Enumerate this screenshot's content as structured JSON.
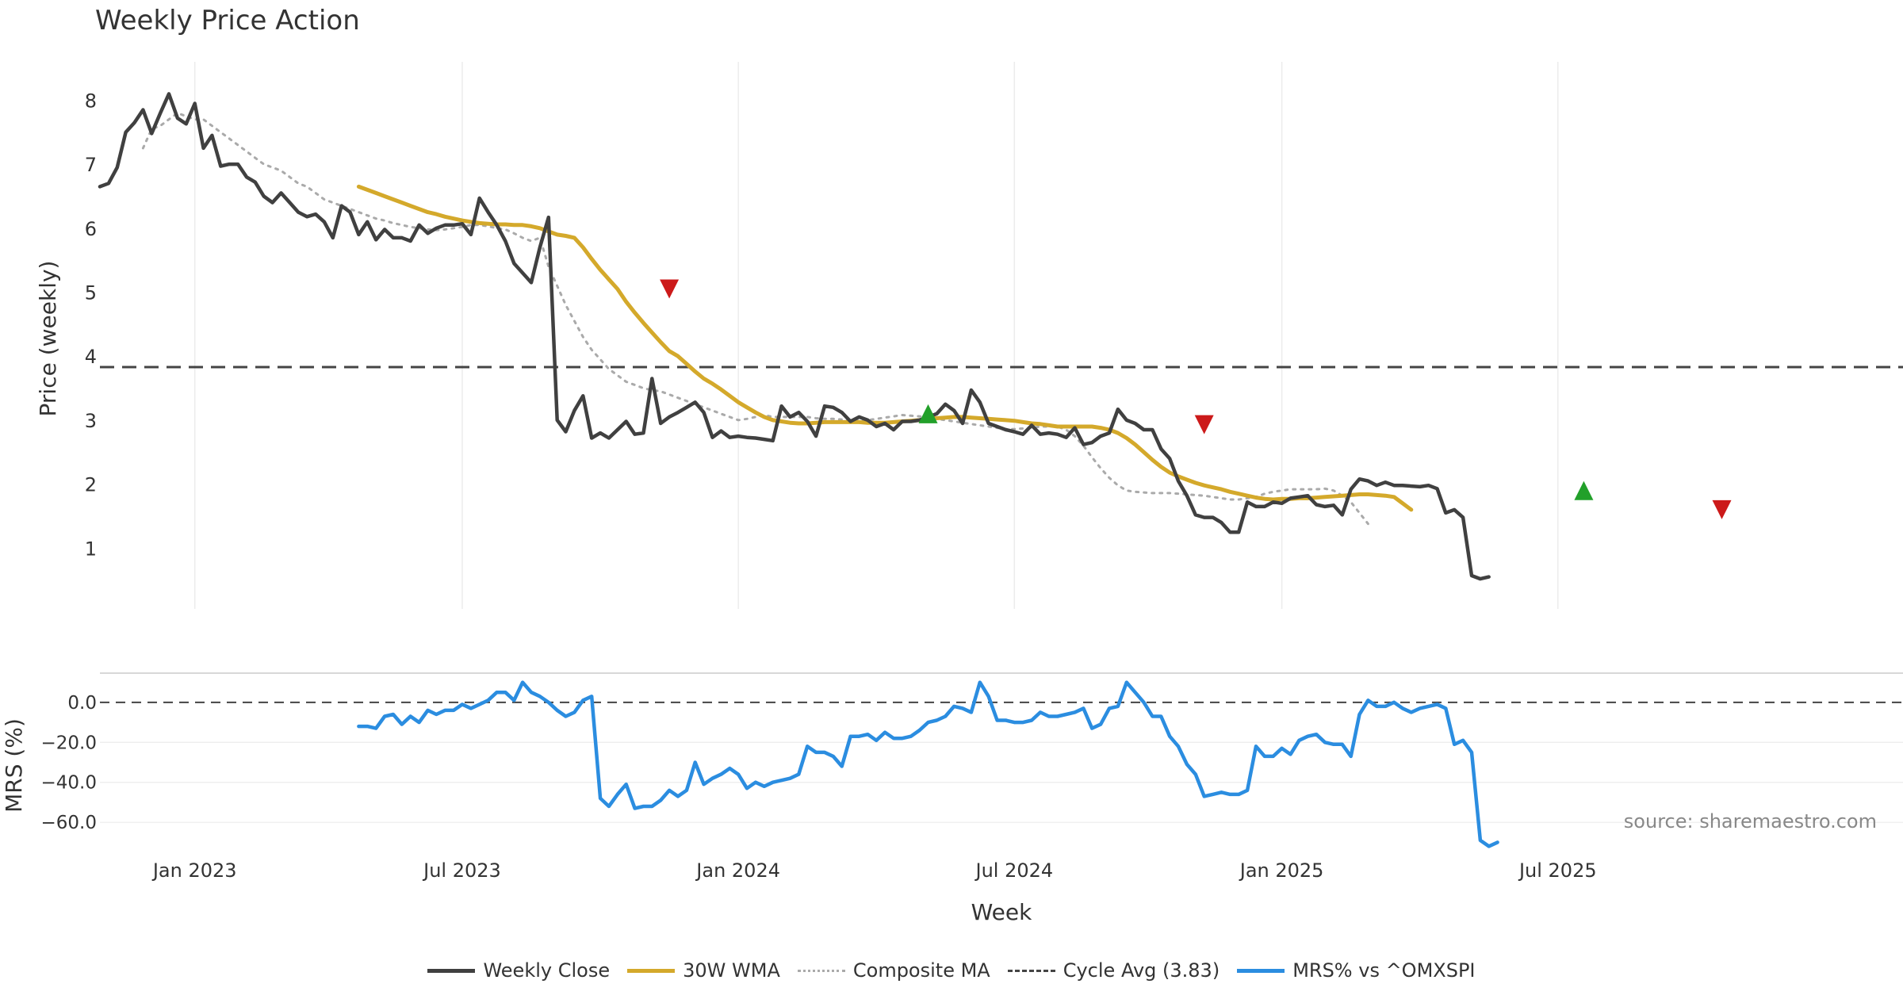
{
  "colors": {
    "close": "#404040",
    "wma": "#d4a92b",
    "composite": "#aaaaaa",
    "cycle": "#444444",
    "mrs": "#2b8de0",
    "buy": "#22a02a",
    "sell": "#cc1a1a",
    "grid": "#ececec",
    "text": "#333333",
    "source": "#888888"
  },
  "chart_data": {
    "type": "line",
    "title": "Weekly Price Action",
    "source": "source: sharemaestro.com",
    "xlabel": "Week",
    "x_range": [
      -11,
      198
    ],
    "x_ticks": [
      {
        "x": 0,
        "label": "Jan 2023"
      },
      {
        "x": 31,
        "label": "Jul 2023"
      },
      {
        "x": 63,
        "label": "Jan 2024"
      },
      {
        "x": 95,
        "label": "Jul 2024"
      },
      {
        "x": 126,
        "label": "Jan 2025"
      },
      {
        "x": 158,
        "label": "Jul 2025"
      }
    ],
    "price_panel": {
      "ylabel": "Price (weekly)",
      "ylim": [
        0.05,
        8.6
      ],
      "y_ticks": [
        "1",
        "2",
        "3",
        "4",
        "5",
        "6",
        "7",
        "8"
      ],
      "cycle_avg": 3.83,
      "series": [
        {
          "name": "Weekly Close",
          "key": "close",
          "x_start": -11,
          "values": [
            6.65,
            6.7,
            6.95,
            7.5,
            7.65,
            7.85,
            7.48,
            7.8,
            8.1,
            7.72,
            7.63,
            7.95,
            7.25,
            7.45,
            6.97,
            7.0,
            7.0,
            6.8,
            6.72,
            6.5,
            6.4,
            6.55,
            6.4,
            6.25,
            6.18,
            6.22,
            6.1,
            5.85,
            6.35,
            6.25,
            5.9,
            6.1,
            5.82,
            5.98,
            5.85,
            5.85,
            5.8,
            6.05,
            5.92,
            6.0,
            6.05,
            6.05,
            6.07,
            5.9,
            6.47,
            6.25,
            6.05,
            5.8,
            5.45,
            5.3,
            5.15,
            5.7,
            6.17,
            3.0,
            2.82,
            3.15,
            3.38,
            2.72,
            2.8,
            2.72,
            2.85,
            2.98,
            2.78,
            2.8,
            3.65,
            2.95,
            3.05,
            3.12,
            3.2,
            3.28,
            3.12,
            2.73,
            2.83,
            2.73,
            2.75,
            2.73,
            2.72,
            2.7,
            2.68,
            3.22,
            3.05,
            3.12,
            2.98,
            2.75,
            3.22,
            3.2,
            3.12,
            2.98,
            3.05,
            3.0,
            2.9,
            2.95,
            2.85,
            2.98,
            2.98,
            3.0,
            3.05,
            3.1,
            3.25,
            3.15,
            2.95,
            3.47,
            3.28,
            2.95,
            2.9,
            2.85,
            2.82,
            2.78,
            2.92,
            2.78,
            2.8,
            2.78,
            2.73,
            2.88,
            2.62,
            2.65,
            2.75,
            2.8,
            3.17,
            3.0,
            2.95,
            2.85,
            2.85,
            2.55,
            2.4,
            2.05,
            1.82,
            1.52,
            1.48,
            1.48,
            1.4,
            1.25,
            1.25,
            1.72,
            1.65,
            1.65,
            1.72,
            1.7,
            1.78,
            1.8,
            1.82,
            1.68,
            1.65,
            1.67,
            1.52,
            1.92,
            2.08,
            2.05,
            1.98,
            2.03,
            1.98,
            1.98,
            1.97,
            1.96,
            1.98,
            1.93,
            1.55,
            1.6,
            1.48,
            0.57,
            0.52,
            0.55
          ]
        },
        {
          "name": "30W WMA",
          "key": "wma",
          "x_start": 19,
          "values": [
            6.65,
            6.6,
            6.55,
            6.5,
            6.45,
            6.4,
            6.35,
            6.3,
            6.25,
            6.22,
            6.18,
            6.15,
            6.12,
            6.1,
            6.08,
            6.07,
            6.06,
            6.06,
            6.05,
            6.05,
            6.03,
            6.0,
            5.95,
            5.9,
            5.88,
            5.85,
            5.7,
            5.52,
            5.35,
            5.2,
            5.05,
            4.85,
            4.68,
            4.52,
            4.37,
            4.22,
            4.08,
            4.0,
            3.88,
            3.76,
            3.65,
            3.57,
            3.48,
            3.38,
            3.28,
            3.2,
            3.12,
            3.05,
            3.0,
            2.98,
            2.96,
            2.95,
            2.95,
            2.96,
            2.97,
            2.97,
            2.97,
            2.97,
            2.97,
            2.96,
            2.96,
            2.96,
            2.97,
            2.98,
            2.99,
            3.0,
            3.02,
            3.03,
            3.04,
            3.05,
            3.05,
            3.04,
            3.03,
            3.02,
            3.01,
            3.0,
            2.99,
            2.97,
            2.95,
            2.94,
            2.92,
            2.9,
            2.9,
            2.9,
            2.9,
            2.9,
            2.88,
            2.85,
            2.8,
            2.72,
            2.62,
            2.5,
            2.38,
            2.27,
            2.18,
            2.12,
            2.07,
            2.02,
            1.98,
            1.95,
            1.92,
            1.88,
            1.85,
            1.82,
            1.79,
            1.77,
            1.76,
            1.77,
            1.77,
            1.78,
            1.78,
            1.79,
            1.8,
            1.81,
            1.82,
            1.83,
            1.84,
            1.84,
            1.83,
            1.82,
            1.8,
            1.7,
            1.6
          ]
        },
        {
          "name": "Composite MA",
          "key": "composite",
          "x_start": -6,
          "values": [
            7.25,
            7.55,
            7.6,
            7.7,
            7.8,
            7.75,
            7.7,
            7.7,
            7.6,
            7.5,
            7.4,
            7.3,
            7.2,
            7.1,
            7.0,
            6.95,
            6.9,
            6.8,
            6.7,
            6.65,
            6.55,
            6.45,
            6.4,
            6.35,
            6.3,
            6.25,
            6.2,
            6.15,
            6.12,
            6.08,
            6.05,
            6.02,
            6.0,
            5.98,
            5.97,
            5.98,
            6.0,
            6.02,
            6.05,
            6.05,
            6.03,
            6.0,
            5.98,
            5.92,
            5.85,
            5.8,
            5.85,
            5.4,
            5.1,
            4.8,
            4.55,
            4.3,
            4.1,
            3.95,
            3.8,
            3.7,
            3.6,
            3.55,
            3.5,
            3.47,
            3.45,
            3.4,
            3.35,
            3.3,
            3.25,
            3.2,
            3.15,
            3.1,
            3.05,
            3.0,
            3.02,
            3.05,
            3.08,
            3.05,
            3.05,
            3.05,
            3.05,
            3.05,
            3.03,
            3.02,
            3.02,
            3.01,
            3.0,
            3.0,
            3.0,
            3.02,
            3.04,
            3.06,
            3.08,
            3.07,
            3.06,
            3.05,
            3.02,
            3.0,
            2.98,
            2.96,
            2.94,
            2.92,
            2.9,
            2.88,
            2.86,
            2.86,
            2.87,
            2.88,
            2.9,
            2.9,
            2.9,
            2.85,
            2.75,
            2.6,
            2.42,
            2.25,
            2.1,
            1.98,
            1.9,
            1.88,
            1.87,
            1.86,
            1.86,
            1.86,
            1.85,
            1.84,
            1.83,
            1.82,
            1.8,
            1.78,
            1.76,
            1.76,
            1.78,
            1.8,
            1.85,
            1.88,
            1.9,
            1.92,
            1.92,
            1.92,
            1.92,
            1.93,
            1.9,
            1.82,
            1.72,
            1.55,
            1.38
          ]
        }
      ],
      "signals": [
        {
          "type": "sell",
          "x": 55,
          "y": 5.05
        },
        {
          "type": "buy",
          "x": 85,
          "y": 3.1
        },
        {
          "type": "sell",
          "x": 117,
          "y": 2.93
        },
        {
          "type": "buy",
          "x": 161,
          "y": 1.9
        },
        {
          "type": "sell",
          "x": 177,
          "y": 1.6
        }
      ]
    },
    "mrs_panel": {
      "ylabel": "MRS (%)",
      "ylim": [
        -75,
        15
      ],
      "y_ticks": [
        {
          "v": 0,
          "label": "0.0"
        },
        {
          "v": -20,
          "label": "−20.0"
        },
        {
          "v": -40,
          "label": "−40.0"
        },
        {
          "v": -60,
          "label": "−60.0"
        }
      ],
      "zero_line": 0,
      "series": {
        "name": "MRS% vs ^OMXSPI",
        "key": "mrs",
        "x_start": 19,
        "values": [
          -12,
          -12,
          -13,
          -7,
          -6,
          -11,
          -7,
          -10,
          -4,
          -6,
          -4,
          -4,
          -1,
          -3,
          -1,
          1,
          5,
          5,
          1,
          10,
          5,
          3,
          0,
          -4,
          -7,
          -5,
          1,
          3,
          -48,
          -52,
          -46,
          -41,
          -53,
          -52,
          -52,
          -49,
          -44,
          -47,
          -44,
          -30,
          -41,
          -38,
          -36,
          -33,
          -36,
          -43,
          -40,
          -42,
          -40,
          -39,
          -38,
          -36,
          -22,
          -25,
          -25,
          -27,
          -32,
          -17,
          -17,
          -16,
          -19,
          -15,
          -18,
          -18,
          -17,
          -14,
          -10,
          -9,
          -7,
          -2,
          -3,
          -5,
          10,
          3,
          -9,
          -9,
          -10,
          -10,
          -9,
          -5,
          -7,
          -7,
          -6,
          -5,
          -3,
          -13,
          -11,
          -3,
          -2,
          10,
          5,
          0,
          -7,
          -7,
          -17,
          -22,
          -31,
          -36,
          -47,
          -46,
          -45,
          -46,
          -46,
          -44,
          -22,
          -27,
          -27,
          -23,
          -26,
          -19,
          -17,
          -16,
          -20,
          -21,
          -21,
          -27,
          -6,
          1,
          -2,
          -2,
          0,
          -3,
          -5,
          -3,
          -2,
          -1,
          -3,
          -21,
          -19,
          -25,
          -69,
          -72,
          -70
        ]
      }
    },
    "legend": [
      {
        "key": "close",
        "label": "Weekly Close",
        "style": "solid"
      },
      {
        "key": "wma",
        "label": "30W WMA",
        "style": "solid"
      },
      {
        "key": "composite",
        "label": "Composite MA",
        "style": "dotted"
      },
      {
        "key": "cycle",
        "label": "Cycle Avg (3.83)",
        "style": "dashed"
      },
      {
        "key": "mrs",
        "label": "MRS% vs ^OMXSPI",
        "style": "solid"
      }
    ]
  }
}
